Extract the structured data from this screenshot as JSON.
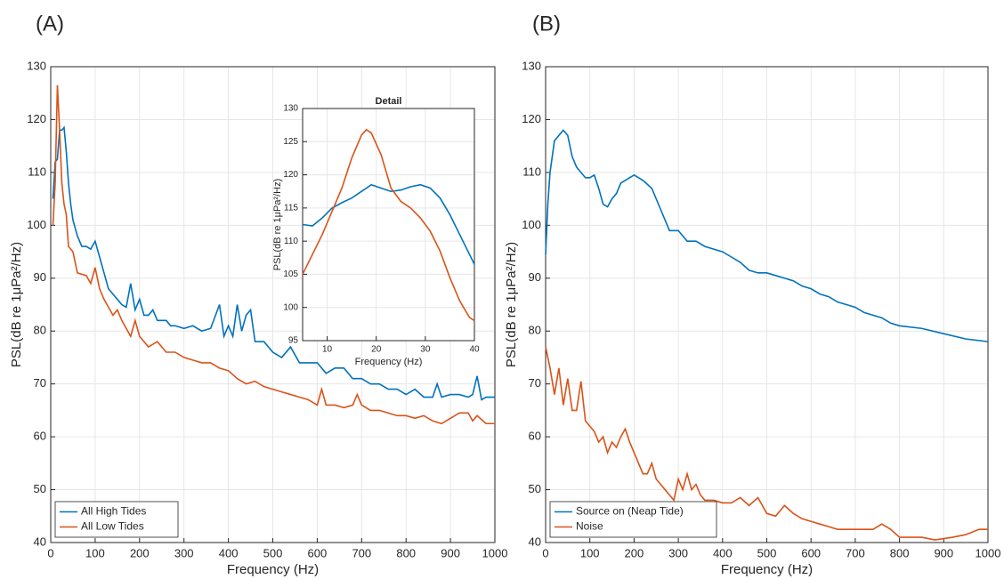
{
  "chart_data": [
    {
      "type": "line",
      "label": "(A)",
      "xlabel": "Frequency (Hz)",
      "ylabel": "PSL(dB re 1μPa²/Hz)",
      "xlim": [
        0,
        1000
      ],
      "ylim": [
        40,
        130
      ],
      "xticks": [
        0,
        100,
        200,
        300,
        400,
        500,
        600,
        700,
        800,
        900,
        1000
      ],
      "yticks": [
        40,
        50,
        60,
        70,
        80,
        90,
        100,
        110,
        120,
        130
      ],
      "grid": true,
      "legend": "lower left",
      "series": [
        {
          "name": "All High Tides",
          "color": "#0072BD",
          "x": [
            5,
            10,
            15,
            20,
            25,
            30,
            35,
            40,
            45,
            50,
            60,
            70,
            80,
            90,
            100,
            110,
            120,
            130,
            140,
            150,
            160,
            170,
            180,
            190,
            200,
            210,
            220,
            230,
            240,
            250,
            260,
            270,
            280,
            300,
            320,
            340,
            360,
            380,
            390,
            400,
            410,
            420,
            430,
            440,
            450,
            460,
            480,
            500,
            520,
            540,
            560,
            580,
            600,
            620,
            640,
            660,
            680,
            700,
            720,
            740,
            760,
            780,
            800,
            820,
            840,
            860,
            870,
            880,
            900,
            920,
            940,
            950,
            960,
            970,
            980,
            1000
          ],
          "values": [
            105,
            112,
            112.5,
            118,
            118,
            118.5,
            114,
            108,
            104,
            101,
            98,
            96,
            96,
            95.5,
            97,
            94,
            91,
            88,
            87,
            86,
            85,
            84.5,
            89,
            84,
            86,
            83,
            83,
            84,
            82,
            82,
            82,
            81,
            81,
            80.5,
            81,
            80,
            80.5,
            85,
            79,
            81,
            79,
            85,
            80,
            83,
            84,
            78,
            78,
            76,
            75,
            77,
            74,
            74,
            74,
            72,
            73,
            73,
            71,
            71,
            70,
            70,
            69,
            69,
            68,
            69,
            67.5,
            67.5,
            70,
            67.5,
            68,
            68,
            67.5,
            68,
            71.5,
            67,
            67.5,
            67.5
          ]
        },
        {
          "name": "All Low Tides",
          "color": "#D95319",
          "x": [
            5,
            10,
            15,
            20,
            25,
            30,
            35,
            40,
            50,
            60,
            80,
            90,
            100,
            110,
            120,
            140,
            150,
            160,
            180,
            190,
            200,
            220,
            240,
            260,
            280,
            300,
            320,
            340,
            360,
            380,
            400,
            420,
            440,
            460,
            480,
            500,
            520,
            540,
            560,
            580,
            600,
            610,
            620,
            640,
            660,
            680,
            690,
            700,
            720,
            740,
            760,
            780,
            800,
            820,
            840,
            860,
            880,
            900,
            920,
            940,
            950,
            960,
            980,
            1000
          ],
          "values": [
            100,
            108,
            126.5,
            118,
            108,
            104,
            102,
            96,
            95,
            91,
            90.5,
            89,
            92,
            88,
            86,
            83,
            84,
            82,
            79,
            82,
            79,
            77,
            78,
            76,
            76,
            75,
            74.5,
            74,
            74,
            73,
            72.5,
            71,
            70,
            70.5,
            69.5,
            69,
            68.5,
            68,
            67.5,
            67,
            66,
            69,
            66,
            66,
            65.5,
            66,
            68,
            66,
            65,
            65,
            64.5,
            64,
            64,
            63.5,
            64,
            63,
            62.5,
            63.5,
            64.5,
            64.5,
            63,
            64,
            62.5,
            62.5
          ]
        }
      ]
    },
    {
      "type": "line",
      "title": "Detail",
      "xlabel": "Frequency (Hz)",
      "ylabel": "PSL(dB re 1μPa²/Hz)",
      "xlim": [
        5,
        40
      ],
      "ylim": [
        95,
        130
      ],
      "xticks": [
        10,
        20,
        30,
        40
      ],
      "yticks": [
        95,
        100,
        105,
        110,
        115,
        120,
        125,
        130
      ],
      "grid": true,
      "series": [
        {
          "name": "All High Tides",
          "color": "#0072BD",
          "x": [
            5,
            7,
            9,
            11,
            13,
            15,
            17,
            19,
            21,
            23,
            25,
            27,
            29,
            31,
            33,
            35,
            37,
            39,
            40
          ],
          "values": [
            112.5,
            112.3,
            113.5,
            115,
            115.8,
            116.5,
            117.5,
            118.5,
            118,
            117.5,
            117.7,
            118.2,
            118.5,
            118,
            116.5,
            114,
            111,
            108,
            106.5
          ]
        },
        {
          "name": "All Low Tides",
          "color": "#D95319",
          "x": [
            5,
            7,
            9,
            11,
            13,
            15,
            17,
            18,
            19,
            21,
            23,
            25,
            27,
            29,
            31,
            33,
            35,
            37,
            39,
            40
          ],
          "values": [
            105,
            108,
            111,
            114.5,
            118,
            122.5,
            126,
            126.8,
            126.3,
            123,
            118,
            116,
            115,
            113.5,
            111.5,
            108.5,
            104.5,
            101,
            98.5,
            98
          ]
        }
      ]
    },
    {
      "type": "line",
      "label": "(B)",
      "xlabel": "Frequency (Hz)",
      "ylabel": "PSL(dB re 1μPa²/Hz)",
      "xlim": [
        0,
        1000
      ],
      "ylim": [
        40,
        130
      ],
      "xticks": [
        0,
        100,
        200,
        300,
        400,
        500,
        600,
        700,
        800,
        900,
        1000
      ],
      "yticks": [
        40,
        50,
        60,
        70,
        80,
        90,
        100,
        110,
        120,
        130
      ],
      "grid": true,
      "legend": "lower left",
      "series": [
        {
          "name": "Source on (Neap Tide)",
          "color": "#0072BD",
          "x": [
            0,
            5,
            10,
            20,
            30,
            40,
            50,
            60,
            70,
            80,
            90,
            100,
            110,
            120,
            130,
            140,
            150,
            160,
            170,
            180,
            200,
            220,
            240,
            260,
            280,
            300,
            320,
            340,
            360,
            380,
            400,
            420,
            440,
            460,
            480,
            500,
            520,
            540,
            560,
            580,
            600,
            620,
            640,
            660,
            680,
            700,
            720,
            740,
            760,
            780,
            800,
            850,
            900,
            950,
            1000
          ],
          "values": [
            94.5,
            104,
            110,
            116,
            117,
            118,
            117,
            113,
            111,
            110,
            109,
            109,
            109.5,
            107,
            104,
            103.5,
            105,
            106,
            108,
            108.5,
            109.5,
            108.5,
            107,
            103,
            99,
            99,
            97,
            97,
            96,
            95.5,
            95,
            94,
            93,
            91.5,
            91,
            91,
            90.5,
            90,
            89.5,
            88.5,
            88,
            87,
            86.5,
            85.5,
            85,
            84.5,
            83.5,
            83,
            82.5,
            81.5,
            81,
            80.5,
            79.5,
            78.5,
            78
          ]
        },
        {
          "name": "Noise",
          "color": "#D95319",
          "x": [
            0,
            10,
            20,
            30,
            40,
            50,
            60,
            70,
            80,
            90,
            100,
            110,
            120,
            130,
            140,
            150,
            160,
            170,
            180,
            190,
            200,
            210,
            220,
            230,
            240,
            250,
            260,
            270,
            280,
            290,
            300,
            310,
            320,
            330,
            340,
            350,
            360,
            380,
            400,
            420,
            440,
            460,
            480,
            500,
            520,
            540,
            560,
            580,
            600,
            620,
            640,
            660,
            700,
            740,
            760,
            780,
            800,
            850,
            880,
            920,
            950,
            980,
            1000
          ],
          "values": [
            77,
            73,
            68,
            73,
            66,
            71,
            65,
            65,
            70.5,
            63,
            62,
            61,
            59,
            60,
            57,
            59,
            58,
            60,
            61.5,
            59,
            57,
            55,
            53,
            53,
            55,
            52,
            51,
            50,
            49,
            48,
            52,
            50,
            53,
            50,
            51,
            49,
            48,
            48,
            47.5,
            47.5,
            48.5,
            47,
            48.5,
            45.5,
            45,
            47,
            45.5,
            44.5,
            44,
            43.5,
            43,
            42.5,
            42.5,
            42.5,
            43.5,
            42.5,
            41,
            41,
            40.5,
            41,
            41.5,
            42.5,
            42.5
          ]
        }
      ]
    }
  ]
}
